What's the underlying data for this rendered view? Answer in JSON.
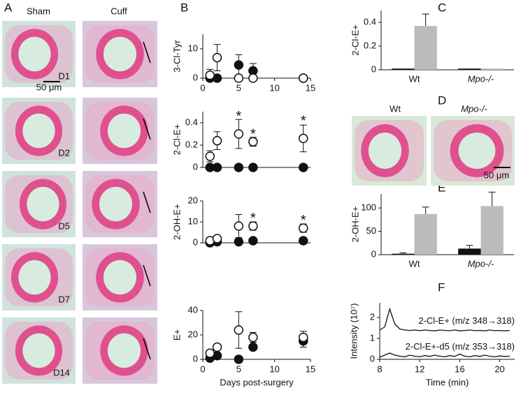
{
  "figure": {
    "panel_labels": [
      "A",
      "B",
      "C",
      "D",
      "E",
      "F"
    ],
    "histology_A": {
      "columns": [
        "Sham",
        "Cuff"
      ],
      "days": [
        "D1",
        "D2",
        "D5",
        "D7",
        "D14"
      ],
      "scale": "50 μm"
    },
    "histology_D": {
      "columns": [
        "Wt",
        "Mpo-/-"
      ],
      "scale": "50 μm"
    }
  },
  "chart_data": [
    {
      "type": "scatter",
      "ylabel": "3-Cl-Tyr",
      "x": [
        1,
        2,
        5,
        7,
        14
      ],
      "xlim": [
        0,
        15
      ],
      "xticks": [
        0,
        5,
        10,
        15
      ],
      "ylim": [
        0,
        15
      ],
      "yticks": [
        0,
        10
      ],
      "series": [
        {
          "marker": "filled",
          "color": "#111111",
          "values": [
            0,
            0,
            4.5,
            2.5,
            0
          ],
          "errors": [
            null,
            null,
            3.5,
            2.5,
            null
          ]
        },
        {
          "marker": "open",
          "color": "#111111",
          "values": [
            1,
            7,
            0,
            0,
            0
          ],
          "errors": [
            2,
            4.5,
            null,
            null,
            null
          ]
        }
      ]
    },
    {
      "type": "scatter",
      "ylabel": "2-Cl-E+",
      "x": [
        1,
        2,
        5,
        7,
        14
      ],
      "xlim": [
        0,
        15
      ],
      "ylim": [
        0,
        0.5
      ],
      "yticks": [
        0,
        0.2,
        0.4
      ],
      "series": [
        {
          "marker": "filled",
          "color": "#111111",
          "values": [
            0,
            0,
            0,
            0,
            0
          ],
          "errors": [
            null,
            null,
            null,
            null,
            null
          ]
        },
        {
          "marker": "open",
          "color": "#111111",
          "values": [
            0.1,
            0.24,
            0.3,
            0.23,
            0.26
          ],
          "errors": [
            0.05,
            0.08,
            0.13,
            0.04,
            0.12
          ]
        }
      ],
      "annotations": [
        {
          "label": "*",
          "x": 5,
          "y": 0.47
        },
        {
          "label": "*",
          "x": 7,
          "y": 0.31
        },
        {
          "label": "*",
          "x": 14,
          "y": 0.43
        }
      ]
    },
    {
      "type": "scatter",
      "ylabel": "2-OH-E+",
      "x": [
        1,
        2,
        5,
        7,
        14
      ],
      "xlim": [
        0,
        15
      ],
      "ylim": [
        0,
        20
      ],
      "yticks": [
        0,
        10,
        20
      ],
      "series": [
        {
          "marker": "filled",
          "color": "#111111",
          "values": [
            0,
            0.5,
            0.5,
            1,
            1
          ],
          "errors": [
            null,
            null,
            null,
            null,
            null
          ]
        },
        {
          "marker": "open",
          "color": "#111111",
          "values": [
            1,
            2,
            8,
            8,
            7
          ],
          "errors": [
            null,
            null,
            5.5,
            2,
            2
          ]
        }
      ],
      "annotations": [
        {
          "label": "*",
          "x": 7,
          "y": 12.5
        },
        {
          "label": "*",
          "x": 14,
          "y": 11.5
        }
      ]
    },
    {
      "type": "scatter",
      "ylabel": "E+",
      "xlabel": "Days post-surgery",
      "x": [
        1,
        2,
        5,
        7,
        14
      ],
      "xlim": [
        0,
        15
      ],
      "xticks": [
        0,
        5,
        10,
        15
      ],
      "ylim": [
        0,
        40
      ],
      "yticks": [
        0,
        20,
        40
      ],
      "series": [
        {
          "marker": "filled",
          "color": "#111111",
          "values": [
            1,
            3,
            0,
            10,
            15
          ],
          "errors": [
            null,
            null,
            null,
            null,
            5
          ]
        },
        {
          "marker": "open",
          "color": "#111111",
          "values": [
            5,
            10,
            24,
            18,
            18
          ],
          "errors": [
            null,
            null,
            15,
            4,
            5
          ]
        }
      ]
    },
    {
      "type": "bar",
      "ylabel": "2-Cl-E+",
      "categories": [
        "Wt",
        "Mpo-/-"
      ],
      "ylim": [
        0,
        0.5
      ],
      "yticks": [
        0,
        0.2,
        0.4
      ],
      "series": [
        {
          "color": "#111111",
          "values": [
            0.01,
            0.01
          ],
          "errors": [
            null,
            null
          ]
        },
        {
          "color": "#bbbbbb",
          "values": [
            0.37,
            0.01
          ],
          "errors": [
            0.1,
            null
          ]
        }
      ]
    },
    {
      "type": "bar",
      "ylabel": "2-OH-E+",
      "categories": [
        "Wt",
        "Mpo-/-"
      ],
      "ylim": [
        0,
        130
      ],
      "yticks": [
        0,
        50,
        100
      ],
      "series": [
        {
          "color": "#111111",
          "values": [
            2,
            13
          ],
          "errors": [
            2,
            7
          ]
        },
        {
          "color": "#bbbbbb",
          "values": [
            87,
            104
          ],
          "errors": [
            15,
            30
          ]
        }
      ]
    },
    {
      "type": "line",
      "ylabel": "Intensity (10⁷)",
      "xlabel": "Time (min)",
      "xlim": [
        8,
        21.5
      ],
      "xticks": [
        8,
        12,
        16,
        20
      ],
      "ylim": [
        0,
        2.7
      ],
      "yticks": [
        0,
        1,
        2
      ],
      "x": [
        8,
        8.5,
        9,
        9.5,
        10,
        10.5,
        11,
        11.5,
        12,
        12.5,
        13,
        13.5,
        14,
        14.5,
        15,
        15.5,
        16,
        16.5,
        17,
        17.5,
        18,
        18.5,
        19,
        19.5,
        20,
        20.5,
        21
      ],
      "series": [
        {
          "name": "2-Cl-E+ (m/z 348→318)",
          "color": "#111111",
          "values": [
            1.4,
            1.55,
            2.4,
            1.7,
            1.45,
            1.4,
            1.38,
            1.4,
            1.37,
            1.4,
            1.38,
            1.36,
            1.4,
            1.38,
            1.37,
            1.4,
            1.36,
            1.38,
            1.4,
            1.37,
            1.38,
            1.36,
            1.4,
            1.37,
            1.38,
            1.36,
            1.38
          ]
        },
        {
          "name": "2-Cl-E+-d5 (m/z 353→318)",
          "color": "#111111",
          "values": [
            0.1,
            0.2,
            0.3,
            0.2,
            0.15,
            0.12,
            0.2,
            0.15,
            0.12,
            0.18,
            0.14,
            0.2,
            0.15,
            0.12,
            0.18,
            0.14,
            0.25,
            0.15,
            0.12,
            0.18,
            0.14,
            0.2,
            0.15,
            0.12,
            0.16,
            0.14,
            0.15
          ]
        }
      ]
    }
  ]
}
